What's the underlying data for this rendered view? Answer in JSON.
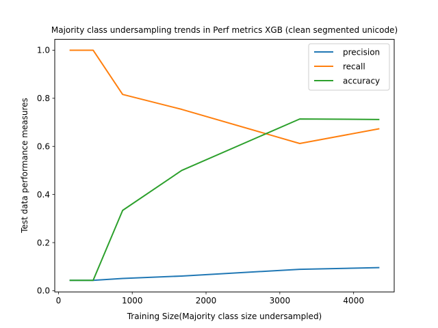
{
  "chart_data": {
    "type": "line",
    "title": "Majority class undersampling trends in Perf metrics XGB (clean segmented unicode)",
    "xlabel": "Training Size(Majority class size undersampled)",
    "ylabel": "Test data performance measures",
    "xlim": [
      -50,
      4550
    ],
    "ylim": [
      -0.005,
      1.045
    ],
    "x_ticks": [
      0,
      1000,
      2000,
      3000,
      4000
    ],
    "x_tick_labels": [
      "0",
      "1000",
      "2000",
      "3000",
      "4000"
    ],
    "y_ticks": [
      0.0,
      0.2,
      0.4,
      0.6,
      0.8,
      1.0
    ],
    "y_tick_labels": [
      "0.0",
      "0.2",
      "0.4",
      "0.6",
      "0.8",
      "1.0"
    ],
    "grid": false,
    "legend_position": "top-right",
    "x": [
      160,
      470,
      870,
      1670,
      3270,
      4340
    ],
    "series": [
      {
        "name": "precision",
        "color": "#1f77b4",
        "values": [
          0.043,
          0.043,
          0.051,
          0.061,
          0.089,
          0.096
        ]
      },
      {
        "name": "recall",
        "color": "#ff7f0e",
        "values": [
          1.0,
          1.0,
          0.816,
          0.754,
          0.612,
          0.673
        ]
      },
      {
        "name": "accuracy",
        "color": "#2ca02c",
        "values": [
          0.043,
          0.043,
          0.334,
          0.5,
          0.714,
          0.712
        ]
      }
    ]
  }
}
